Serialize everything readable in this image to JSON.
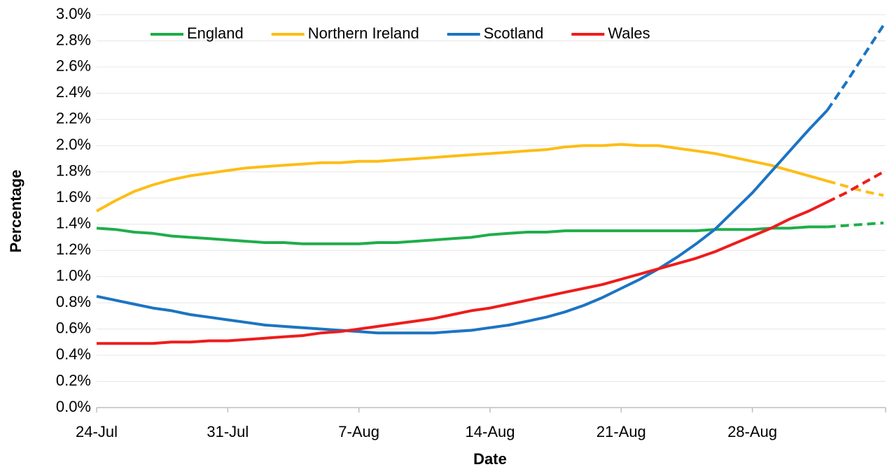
{
  "chart_data": {
    "type": "line",
    "x_label": "Date",
    "y_label": "Percentage",
    "categories": [
      "24-Jul",
      null,
      null,
      null,
      null,
      null,
      null,
      "31-Jul",
      null,
      null,
      null,
      null,
      null,
      null,
      "7-Aug",
      null,
      null,
      null,
      null,
      null,
      null,
      "14-Aug",
      null,
      null,
      null,
      null,
      null,
      null,
      "21-Aug",
      null,
      null,
      null,
      null,
      null,
      null,
      "28-Aug",
      null,
      null,
      null,
      null,
      null,
      null,
      null
    ],
    "dashed_from_index": 39,
    "series": [
      {
        "name": "England",
        "color": "#1fad4b",
        "values": [
          1.37,
          1.36,
          1.34,
          1.33,
          1.31,
          1.3,
          1.29,
          1.28,
          1.27,
          1.26,
          1.26,
          1.25,
          1.25,
          1.25,
          1.25,
          1.26,
          1.26,
          1.27,
          1.28,
          1.29,
          1.3,
          1.32,
          1.33,
          1.34,
          1.34,
          1.35,
          1.35,
          1.35,
          1.35,
          1.35,
          1.35,
          1.35,
          1.35,
          1.36,
          1.36,
          1.36,
          1.37,
          1.37,
          1.38,
          1.38,
          1.39,
          1.4,
          1.41
        ]
      },
      {
        "name": "Northern Ireland",
        "color": "#fdbd16",
        "values": [
          1.5,
          1.58,
          1.65,
          1.7,
          1.74,
          1.77,
          1.79,
          1.81,
          1.83,
          1.84,
          1.85,
          1.86,
          1.87,
          1.87,
          1.88,
          1.88,
          1.89,
          1.9,
          1.91,
          1.92,
          1.93,
          1.94,
          1.95,
          1.96,
          1.97,
          1.99,
          2.0,
          2.0,
          2.01,
          2.0,
          2.0,
          1.98,
          1.96,
          1.94,
          1.91,
          1.88,
          1.85,
          1.81,
          1.77,
          1.73,
          1.69,
          1.65,
          1.62
        ]
      },
      {
        "name": "Scotland",
        "color": "#1b74c2",
        "values": [
          0.85,
          0.82,
          0.79,
          0.76,
          0.74,
          0.71,
          0.69,
          0.67,
          0.65,
          0.63,
          0.62,
          0.61,
          0.6,
          0.59,
          0.58,
          0.57,
          0.57,
          0.57,
          0.57,
          0.58,
          0.59,
          0.61,
          0.63,
          0.66,
          0.69,
          0.73,
          0.78,
          0.84,
          0.91,
          0.98,
          1.06,
          1.15,
          1.25,
          1.36,
          1.5,
          1.64,
          1.8,
          1.96,
          2.12,
          2.27,
          2.48,
          2.7,
          2.92
        ]
      },
      {
        "name": "Wales",
        "color": "#ee1c1c",
        "values": [
          0.49,
          0.49,
          0.49,
          0.49,
          0.5,
          0.5,
          0.51,
          0.51,
          0.52,
          0.53,
          0.54,
          0.55,
          0.57,
          0.58,
          0.6,
          0.62,
          0.64,
          0.66,
          0.68,
          0.71,
          0.74,
          0.76,
          0.79,
          0.82,
          0.85,
          0.88,
          0.91,
          0.94,
          0.98,
          1.02,
          1.06,
          1.1,
          1.14,
          1.19,
          1.25,
          1.31,
          1.37,
          1.44,
          1.5,
          1.57,
          1.64,
          1.72,
          1.8
        ]
      }
    ],
    "ylim": [
      0,
      3
    ],
    "yticks": [
      {
        "value": 0,
        "label": "0.0%"
      },
      {
        "value": 0.2,
        "label": "0.2%"
      },
      {
        "value": 0.4,
        "label": "0.4%"
      },
      {
        "value": 0.6,
        "label": "0.6%"
      },
      {
        "value": 0.8,
        "label": "0.8%"
      },
      {
        "value": 1,
        "label": "1.0%"
      },
      {
        "value": 1.2,
        "label": "1.2%"
      },
      {
        "value": 1.4,
        "label": "1.4%"
      },
      {
        "value": 1.6,
        "label": "1.6%"
      },
      {
        "value": 1.8,
        "label": "1.8%"
      },
      {
        "value": 2,
        "label": "2.0%"
      },
      {
        "value": 2.2,
        "label": "2.2%"
      },
      {
        "value": 2.4,
        "label": "2.4%"
      },
      {
        "value": 2.6,
        "label": "2.6%"
      },
      {
        "value": 2.8,
        "label": "2.8%"
      },
      {
        "value": 3,
        "label": "3.0%"
      }
    ],
    "grid": true,
    "legend": "top"
  }
}
